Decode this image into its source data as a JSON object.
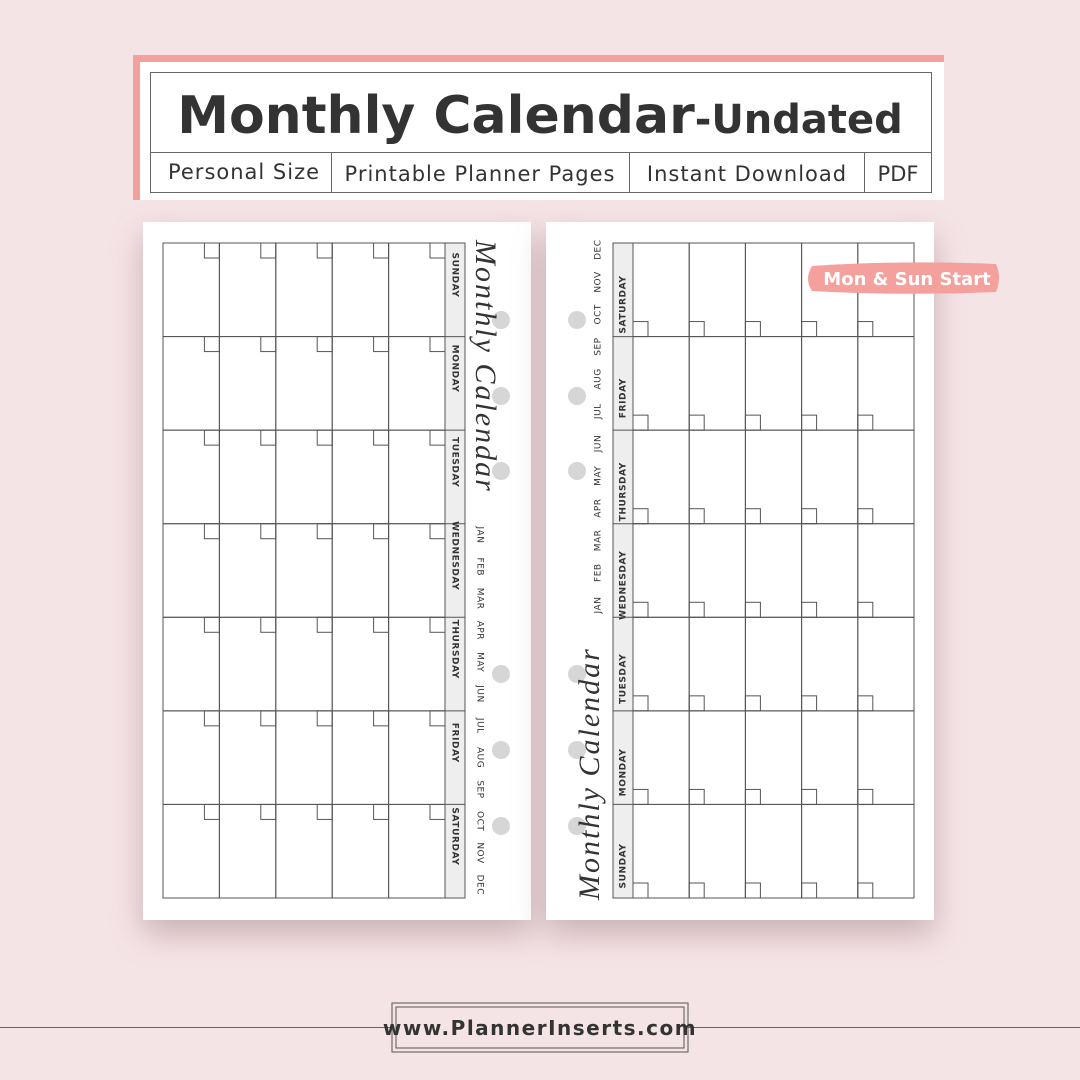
{
  "header": {
    "title": "Monthly Calendar",
    "subtitle": "-Undated",
    "tags": [
      "Personal Size",
      "Printable Planner Pages",
      "Instant Download",
      "PDF"
    ]
  },
  "badge": "Mon & Sun Start",
  "left_page": {
    "script_title": "Monthly Calendar",
    "days": [
      "SUNDAY",
      "MONDAY",
      "TUESDAY",
      "WEDNESDAY",
      "THURSDAY",
      "FRIDAY",
      "SATURDAY"
    ],
    "months": [
      "JAN",
      "FEB",
      "MAR",
      "APR",
      "MAY",
      "JUN",
      "JUL",
      "AUG",
      "SEP",
      "OCT",
      "NOV",
      "DEC"
    ]
  },
  "right_page": {
    "script_title": "Monthly Calendar",
    "days": [
      "SATURDAY",
      "FRIDAY",
      "THURSDAY",
      "WEDNESDAY",
      "TUESDAY",
      "MONDAY",
      "SUNDAY"
    ],
    "months": [
      "JAN",
      "FEB",
      "MAR",
      "APR",
      "MAY",
      "JUN",
      "JUL",
      "AUG",
      "SEP",
      "OCT",
      "NOV",
      "DEC"
    ]
  },
  "footer": {
    "website": "www.PlannerInserts.com"
  }
}
